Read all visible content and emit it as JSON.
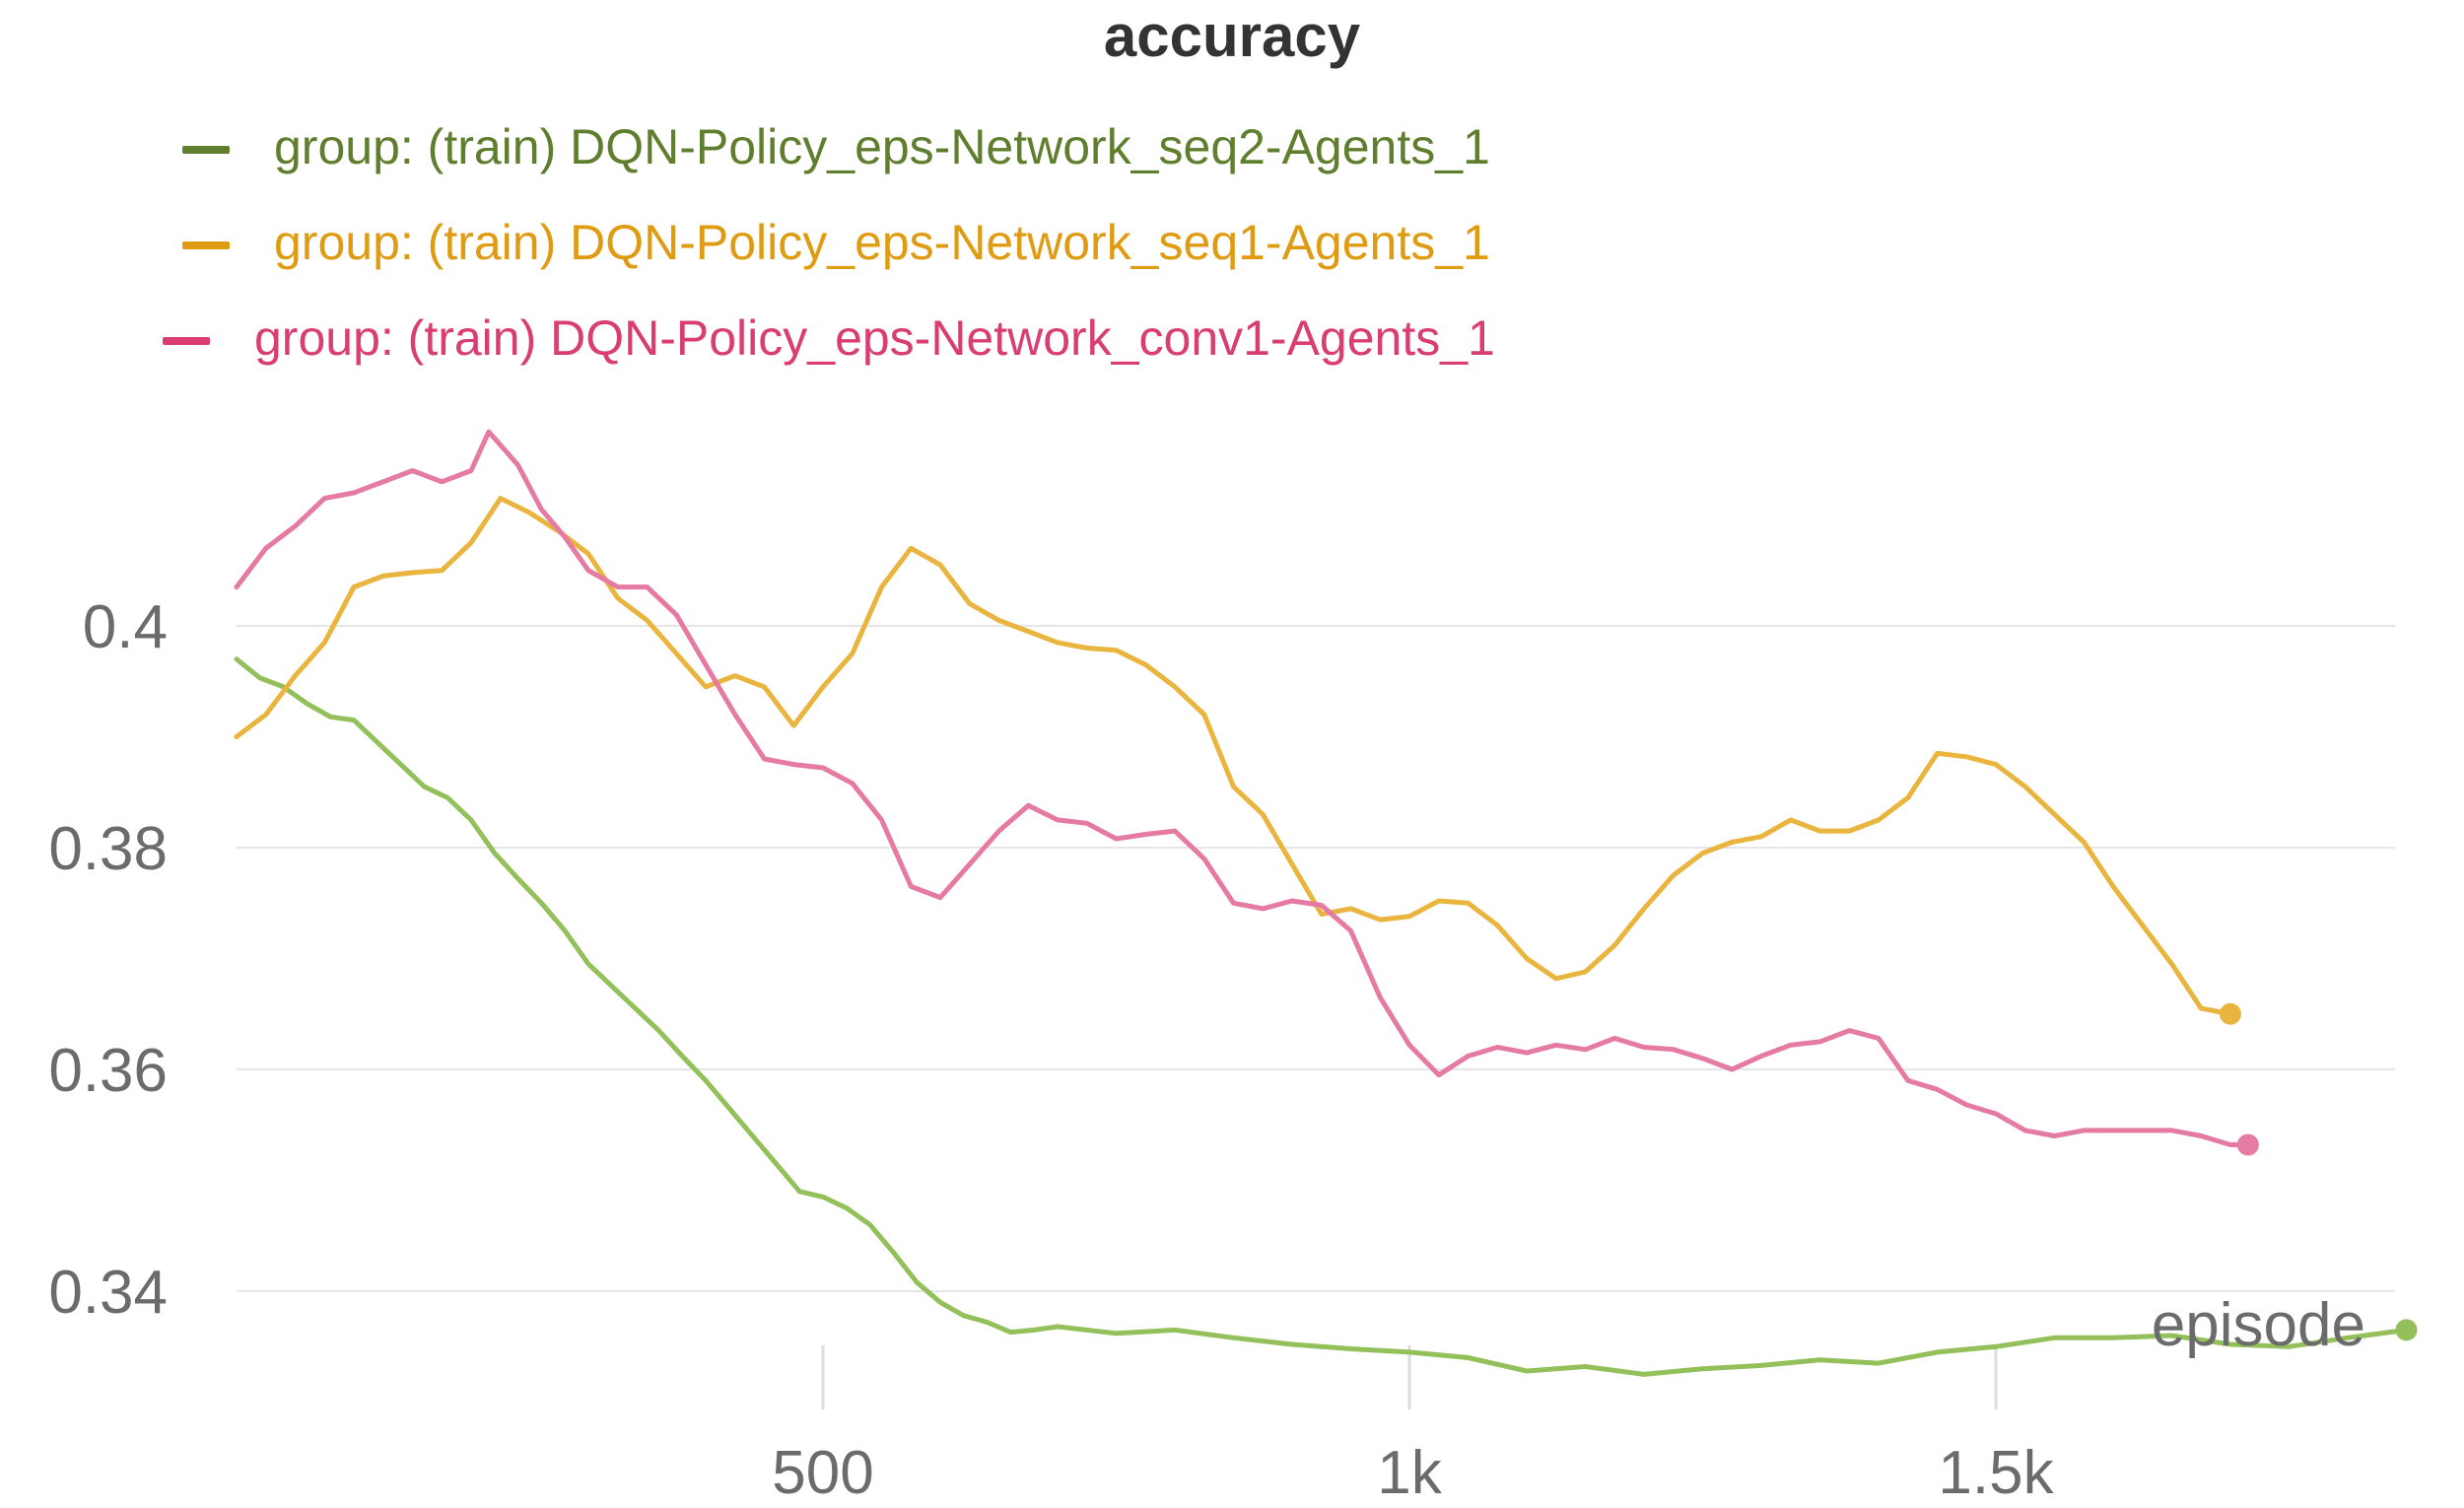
{
  "chart_data": {
    "type": "line",
    "title": "accuracy",
    "xlabel": "episode",
    "ylabel": "",
    "xlim": [
      0,
      1850
    ],
    "ylim": [
      0.331,
      0.42
    ],
    "x_ticks": [
      500,
      1000,
      1500
    ],
    "x_tick_labels": [
      "500",
      "1k",
      "1.5k"
    ],
    "y_ticks": [
      0.34,
      0.36,
      0.38,
      0.4
    ],
    "y_tick_labels": [
      "0.34",
      "0.36",
      "0.38",
      "0.4"
    ],
    "grid": true,
    "legend_position": "top-left",
    "series": [
      {
        "name": "group: (train) DQN-Policy_eps-Network_seq2-Agents_1",
        "color": "#93c05a",
        "legend_color": "#5f7f2e",
        "x": [
          0,
          20,
          40,
          60,
          80,
          100,
          120,
          140,
          160,
          180,
          200,
          220,
          240,
          260,
          280,
          300,
          320,
          340,
          360,
          380,
          400,
          420,
          440,
          460,
          480,
          500,
          520,
          540,
          560,
          580,
          600,
          620,
          640,
          660,
          680,
          700,
          750,
          800,
          850,
          900,
          950,
          1000,
          1050,
          1100,
          1150,
          1200,
          1250,
          1300,
          1350,
          1400,
          1450,
          1500,
          1550,
          1600,
          1650,
          1700,
          1750,
          1800,
          1850
        ],
        "values": [
          0.397,
          0.3953,
          0.3945,
          0.393,
          0.3918,
          0.3915,
          0.3895,
          0.3875,
          0.3855,
          0.3845,
          0.3825,
          0.3795,
          0.3772,
          0.375,
          0.3725,
          0.3695,
          0.3675,
          0.3655,
          0.3635,
          0.3612,
          0.359,
          0.3565,
          0.354,
          0.3515,
          0.349,
          0.3485,
          0.3475,
          0.346,
          0.3435,
          0.3408,
          0.339,
          0.3378,
          0.3372,
          0.3363,
          0.3365,
          0.3368,
          0.3362,
          0.3365,
          0.3358,
          0.3352,
          0.3348,
          0.3345,
          0.334,
          0.3328,
          0.3332,
          0.3325,
          0.333,
          0.3333,
          0.3338,
          0.3335,
          0.3345,
          0.335,
          0.3358,
          0.3358,
          0.336,
          0.3352,
          0.335,
          0.3358,
          0.3365
        ]
      },
      {
        "name": "group: (train) DQN-Policy_eps-Network_seq1-Agents_1",
        "color": "#e9b53e",
        "legend_color": "#df9b12",
        "x": [
          0,
          25,
          50,
          75,
          100,
          125,
          150,
          175,
          200,
          225,
          250,
          275,
          300,
          325,
          350,
          375,
          400,
          425,
          450,
          475,
          500,
          525,
          550,
          575,
          600,
          625,
          650,
          675,
          700,
          725,
          750,
          775,
          800,
          825,
          850,
          875,
          900,
          925,
          950,
          975,
          1000,
          1025,
          1050,
          1075,
          1100,
          1125,
          1150,
          1175,
          1200,
          1225,
          1250,
          1275,
          1300,
          1325,
          1350,
          1375,
          1400,
          1425,
          1450,
          1475,
          1500,
          1525,
          1550,
          1575,
          1600,
          1625,
          1650,
          1675,
          1700
        ],
        "values": [
          0.39,
          0.392,
          0.3955,
          0.3985,
          0.4035,
          0.4045,
          0.4048,
          0.405,
          0.4075,
          0.4115,
          0.4102,
          0.4085,
          0.4065,
          0.4025,
          0.4005,
          0.3975,
          0.3945,
          0.3955,
          0.3945,
          0.391,
          0.3945,
          0.3975,
          0.4035,
          0.407,
          0.4055,
          0.402,
          0.4005,
          0.3995,
          0.3985,
          0.398,
          0.3978,
          0.3965,
          0.3945,
          0.392,
          0.3855,
          0.383,
          0.3785,
          0.374,
          0.3745,
          0.3735,
          0.3738,
          0.3752,
          0.375,
          0.373,
          0.37,
          0.3682,
          0.3688,
          0.3712,
          0.3745,
          0.3775,
          0.3795,
          0.3805,
          0.381,
          0.3825,
          0.3815,
          0.3815,
          0.3825,
          0.3845,
          0.3885,
          0.3882,
          0.3875,
          0.3855,
          0.383,
          0.3805,
          0.3765,
          0.373,
          0.3695,
          0.3655,
          0.365
        ]
      },
      {
        "name": "group: (train) DQN-Policy_eps-Network_conv1-Agents_1",
        "color": "#e57aa3",
        "legend_color": "#d93d72",
        "x": [
          0,
          25,
          50,
          75,
          100,
          125,
          150,
          175,
          200,
          215,
          240,
          260,
          280,
          300,
          325,
          350,
          375,
          400,
          425,
          450,
          475,
          500,
          525,
          550,
          575,
          600,
          625,
          650,
          675,
          700,
          725,
          750,
          775,
          800,
          825,
          850,
          875,
          900,
          925,
          950,
          975,
          1000,
          1025,
          1050,
          1075,
          1100,
          1125,
          1150,
          1175,
          1200,
          1225,
          1250,
          1275,
          1300,
          1325,
          1350,
          1375,
          1400,
          1425,
          1450,
          1475,
          1500,
          1525,
          1550,
          1575,
          1600,
          1625,
          1650,
          1675,
          1700,
          1715
        ],
        "values": [
          0.4035,
          0.407,
          0.409,
          0.4115,
          0.412,
          0.413,
          0.414,
          0.413,
          0.414,
          0.4175,
          0.4145,
          0.4105,
          0.408,
          0.405,
          0.4035,
          0.4035,
          0.401,
          0.3965,
          0.392,
          0.388,
          0.3875,
          0.3872,
          0.3858,
          0.3825,
          0.3765,
          0.3755,
          0.3785,
          0.3815,
          0.3838,
          0.3825,
          0.3822,
          0.3808,
          0.3812,
          0.3815,
          0.379,
          0.375,
          0.3745,
          0.3752,
          0.3748,
          0.3725,
          0.3665,
          0.3622,
          0.3595,
          0.3612,
          0.362,
          0.3615,
          0.3622,
          0.3618,
          0.3628,
          0.362,
          0.3618,
          0.361,
          0.36,
          0.3612,
          0.3622,
          0.3625,
          0.3635,
          0.3628,
          0.359,
          0.3582,
          0.3568,
          0.356,
          0.3545,
          0.354,
          0.3545,
          0.3545,
          0.3545,
          0.3545,
          0.354,
          0.3532,
          0.3532
        ]
      }
    ]
  }
}
